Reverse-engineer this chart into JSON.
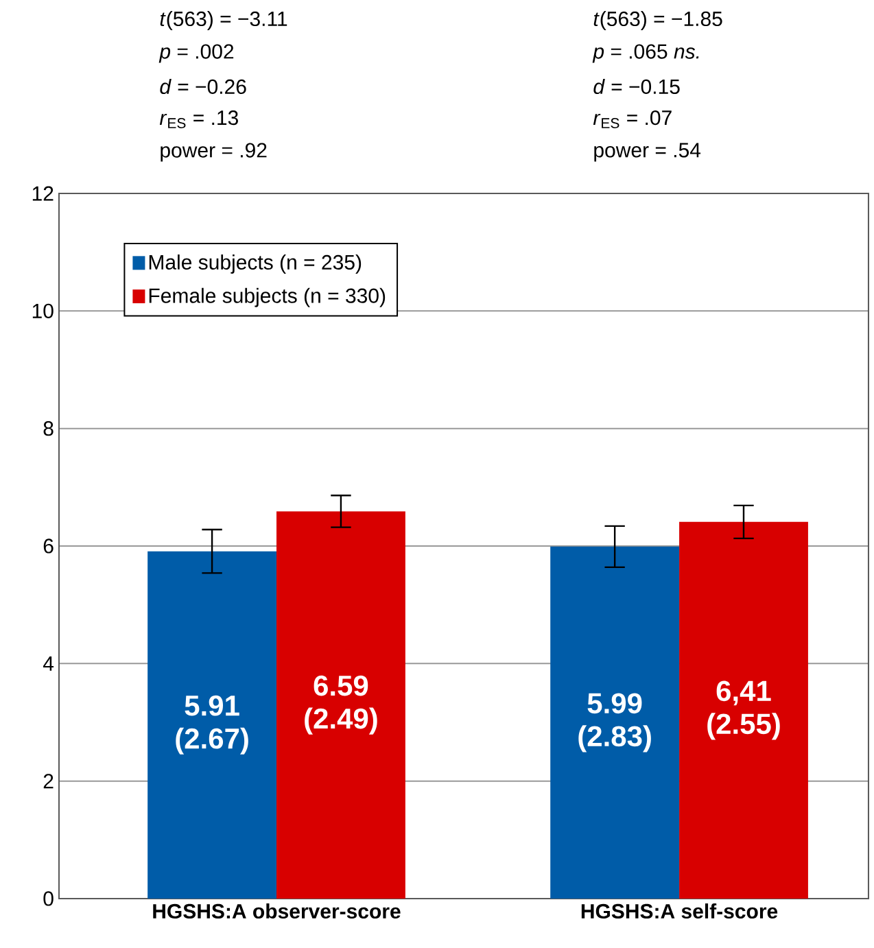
{
  "chart_data": {
    "type": "bar",
    "categories": [
      "HGSHS:A observer-score",
      "HGSHS:A self-score"
    ],
    "series": [
      {
        "name": "Male subjects (n = 235)",
        "color": "#005ca8",
        "values": [
          5.91,
          5.99
        ],
        "errors": [
          0.37,
          0.35
        ],
        "value_labels": [
          "5.91 (2.67)",
          "5.99 (2.83)"
        ]
      },
      {
        "name": "Female subjects (n = 330)",
        "color": "#d80000",
        "values": [
          6.59,
          6.41
        ],
        "errors": [
          0.27,
          0.28
        ],
        "value_labels": [
          "6.59 (2.49)",
          "6,41 (2.55)"
        ]
      }
    ],
    "ylim": [
      0,
      12
    ],
    "yticks": [
      0,
      2,
      4,
      6,
      8,
      10,
      12
    ],
    "grid": "y",
    "legend": "top left",
    "annotations": [
      "*t*(563) = −3.11",
      "*p* = .002",
      "*d* = −0.26",
      "*r*$_{ES}$ = .13",
      "power = .92",
      "*t*(563) = −1.85",
      "*p* = .065 *ns.*",
      "*d* = −0.15",
      "*r*$_{ES}$ = .07",
      "power = .54"
    ]
  }
}
